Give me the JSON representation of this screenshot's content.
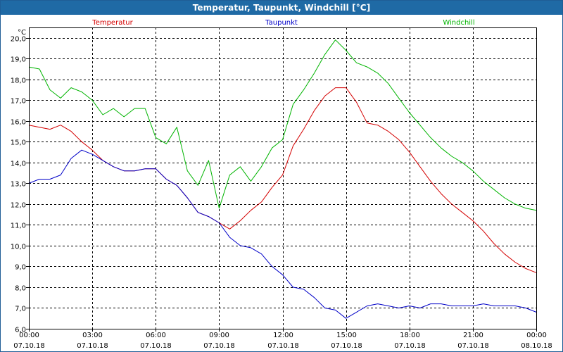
{
  "window": {
    "title": "Temperatur, Taupunkt, Windchill [°C]"
  },
  "chart_data": {
    "type": "line",
    "title": "Temperatur, Taupunkt, Windchill [°C]",
    "ylabel": "°C",
    "ylim": [
      6.0,
      20.5
    ],
    "yticks": [
      6.0,
      7.0,
      8.0,
      9.0,
      10.0,
      11.0,
      12.0,
      13.0,
      14.0,
      15.0,
      16.0,
      17.0,
      18.0,
      19.0,
      20.0
    ],
    "ytick_labels": [
      "6,0",
      "7,0",
      "8,0",
      "9,0",
      "10,0",
      "11,0",
      "12,0",
      "13,0",
      "14,0",
      "15,0",
      "16,0",
      "17,0",
      "18,0",
      "19,0",
      "20,0"
    ],
    "xlim": [
      0,
      24
    ],
    "xticks": [
      {
        "h": 0,
        "time": "00:00",
        "date": "07.10.18"
      },
      {
        "h": 3,
        "time": "03:00",
        "date": "07.10.18"
      },
      {
        "h": 6,
        "time": "06:00",
        "date": "07.10.18"
      },
      {
        "h": 9,
        "time": "09:00",
        "date": "07.10.18"
      },
      {
        "h": 12,
        "time": "12:00",
        "date": "07.10.18"
      },
      {
        "h": 15,
        "time": "15:00",
        "date": "07.10.18"
      },
      {
        "h": 18,
        "time": "18:00",
        "date": "07.10.18"
      },
      {
        "h": 21,
        "time": "21:00",
        "date": "07.10.18"
      },
      {
        "h": 24,
        "time": "00:00",
        "date": "08.10.18"
      }
    ],
    "grid": true,
    "series": [
      {
        "name": "Temperatur",
        "color": "#d40000",
        "x": [
          0,
          0.5,
          1,
          1.5,
          2,
          2.5,
          3,
          3.5,
          4,
          4.5,
          5,
          5.5,
          6,
          6.5,
          7,
          7.5,
          8,
          8.5,
          9,
          9.5,
          10,
          10.5,
          11,
          11.5,
          12,
          12.5,
          13,
          13.5,
          14,
          14.5,
          15,
          15.5,
          16,
          16.5,
          17,
          17.5,
          18,
          18.5,
          19,
          19.5,
          20,
          20.5,
          21,
          21.5,
          22,
          22.5,
          23,
          23.5,
          24
        ],
        "values": [
          15.8,
          15.7,
          15.6,
          15.8,
          15.5,
          15.0,
          14.6,
          14.1,
          13.8,
          13.6,
          13.6,
          13.7,
          13.7,
          13.2,
          12.9,
          12.3,
          11.6,
          11.4,
          11.1,
          10.8,
          11.2,
          11.7,
          12.1,
          12.8,
          13.4,
          14.8,
          15.6,
          16.5,
          17.2,
          17.6,
          17.6,
          16.9,
          15.9,
          15.8,
          15.5,
          15.1,
          14.5,
          13.8,
          13.1,
          12.5,
          12.0,
          11.6,
          11.2,
          10.7,
          10.1,
          9.6,
          9.2,
          8.9,
          8.7
        ]
      },
      {
        "name": "Taupunkt",
        "color": "#0000c8",
        "x": [
          0,
          0.5,
          1,
          1.5,
          2,
          2.5,
          3,
          3.5,
          4,
          4.5,
          5,
          5.5,
          6,
          6.5,
          7,
          7.5,
          8,
          8.5,
          9,
          9.5,
          10,
          10.5,
          11,
          11.5,
          12,
          12.5,
          13,
          13.5,
          14,
          14.5,
          15,
          15.5,
          16,
          16.5,
          17,
          17.5,
          18,
          18.5,
          19,
          19.5,
          20,
          20.5,
          21,
          21.5,
          22,
          22.5,
          23,
          23.5,
          24
        ],
        "values": [
          13.0,
          13.2,
          13.2,
          13.4,
          14.2,
          14.6,
          14.4,
          14.1,
          13.8,
          13.6,
          13.6,
          13.7,
          13.7,
          13.2,
          12.9,
          12.3,
          11.6,
          11.4,
          11.1,
          10.4,
          10.0,
          9.9,
          9.6,
          9.0,
          8.6,
          8.0,
          7.9,
          7.5,
          7.0,
          6.9,
          6.5,
          6.8,
          7.1,
          7.2,
          7.1,
          7.0,
          7.1,
          7.0,
          7.2,
          7.2,
          7.1,
          7.1,
          7.1,
          7.2,
          7.1,
          7.1,
          7.1,
          7.0,
          6.8
        ]
      },
      {
        "name": "Windchill",
        "color": "#00b400",
        "x": [
          0,
          0.5,
          1,
          1.5,
          2,
          2.5,
          3,
          3.5,
          4,
          4.5,
          5,
          5.5,
          6,
          6.5,
          7,
          7.5,
          8,
          8.5,
          9,
          9.5,
          10,
          10.5,
          11,
          11.5,
          12,
          12.5,
          13,
          13.5,
          14,
          14.5,
          15,
          15.5,
          16,
          16.5,
          17,
          17.5,
          18,
          18.5,
          19,
          19.5,
          20,
          20.5,
          21,
          21.5,
          22,
          22.5,
          23,
          23.5,
          24
        ],
        "values": [
          18.6,
          18.5,
          17.5,
          17.1,
          17.6,
          17.4,
          17.0,
          16.3,
          16.6,
          16.2,
          16.6,
          16.6,
          15.2,
          14.9,
          15.7,
          13.6,
          12.9,
          14.1,
          11.8,
          13.4,
          13.8,
          13.1,
          13.8,
          14.7,
          15.1,
          16.8,
          17.5,
          18.3,
          19.2,
          19.9,
          19.4,
          18.8,
          18.6,
          18.3,
          17.8,
          17.1,
          16.4,
          15.8,
          15.2,
          14.7,
          14.3,
          14.0,
          13.6,
          13.1,
          12.7,
          12.3,
          12.0,
          11.8,
          11.7
        ]
      }
    ]
  }
}
